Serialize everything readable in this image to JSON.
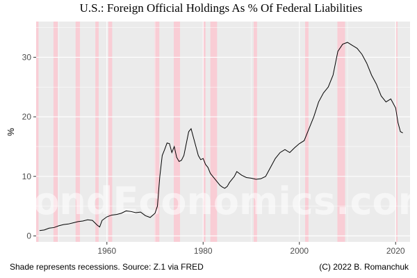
{
  "chart_data": {
    "type": "line",
    "title": "U.S.: Foreign Official Holdings As % Of Federal Liabilities",
    "xlabel": "",
    "ylabel": "%",
    "xlim": [
      1945.3,
      2023.0
    ],
    "ylim": [
      -1.0,
      36.0
    ],
    "x_ticks": [
      1960,
      1980,
      2000,
      2020
    ],
    "y_ticks": [
      0,
      10,
      20,
      30
    ],
    "grid": true,
    "legend": "none",
    "colors": {
      "panel": "#ebebeb",
      "grid": "#ffffff",
      "line": "#000000",
      "recession": "#f9cdd5"
    },
    "recessions": [
      [
        1945.1,
        1945.8
      ],
      [
        1948.9,
        1949.8
      ],
      [
        1953.5,
        1954.4
      ],
      [
        1957.6,
        1958.3
      ],
      [
        1960.3,
        1961.1
      ],
      [
        1969.9,
        1970.9
      ],
      [
        1973.9,
        1975.2
      ],
      [
        1980.0,
        1980.5
      ],
      [
        1981.5,
        1982.9
      ],
      [
        1990.5,
        1991.2
      ],
      [
        2001.2,
        2001.9
      ],
      [
        2007.9,
        2009.5
      ],
      [
        2020.1,
        2020.4
      ]
    ],
    "series": [
      {
        "x": [
          1946,
          1947,
          1948,
          1949,
          1950,
          1951,
          1952,
          1953,
          1954,
          1955,
          1956,
          1957,
          1958,
          1958.5,
          1959,
          1960,
          1961,
          1962,
          1963,
          1964,
          1965,
          1966,
          1967,
          1968,
          1969,
          1970,
          1970.5,
          1971,
          1971.5,
          1972,
          1972.5,
          1973,
          1973.5,
          1974,
          1974.5,
          1975,
          1975.5,
          1976,
          1976.5,
          1977,
          1977.5,
          1978,
          1978.5,
          1979,
          1979.5,
          1980,
          1980.5,
          1981,
          1981.5,
          1982,
          1982.5,
          1983,
          1983.5,
          1984,
          1984.5,
          1985,
          1985.5,
          1986,
          1986.5,
          1987,
          1988,
          1989,
          1990,
          1991,
          1992,
          1993,
          1994,
          1995,
          1996,
          1997,
          1998,
          1999,
          2000,
          2001,
          2002,
          2003,
          2004,
          2005,
          2006,
          2007,
          2008,
          2009,
          2010,
          2011,
          2012,
          2013,
          2014,
          2015,
          2016,
          2017,
          2018,
          2019,
          2020,
          2020.5,
          2021,
          2021.5
        ],
        "y": [
          0.9,
          1.0,
          1.3,
          1.4,
          1.7,
          1.9,
          2.0,
          2.2,
          2.4,
          2.5,
          2.7,
          2.6,
          1.8,
          1.5,
          2.6,
          3.2,
          3.5,
          3.6,
          3.8,
          4.2,
          4.1,
          3.9,
          4.0,
          3.4,
          3.1,
          3.8,
          5.0,
          10.0,
          13.5,
          14.5,
          15.6,
          15.5,
          14.0,
          15.0,
          13.2,
          12.5,
          12.7,
          13.5,
          15.5,
          17.5,
          18.0,
          16.5,
          15.0,
          13.5,
          12.8,
          13.0,
          12.0,
          11.5,
          10.5,
          10.0,
          9.5,
          9.0,
          8.5,
          8.2,
          8.0,
          8.3,
          9.0,
          9.5,
          10.0,
          10.8,
          10.2,
          9.8,
          9.7,
          9.5,
          9.6,
          10.0,
          11.5,
          13.0,
          14.0,
          14.5,
          14.0,
          14.8,
          15.5,
          16.0,
          18.0,
          20.0,
          22.5,
          24.0,
          25.0,
          27.0,
          31.0,
          32.2,
          32.5,
          32.0,
          31.5,
          30.5,
          29.0,
          27.0,
          25.5,
          23.5,
          22.5,
          23.0,
          21.5,
          19.0,
          17.5,
          17.3
        ]
      }
    ],
    "watermark": "BondEconomics.com",
    "caption_left": "Shade represents recessions. Source: Z.1 via FRED",
    "caption_right": "(C) 2022 B. Romanchuk"
  }
}
